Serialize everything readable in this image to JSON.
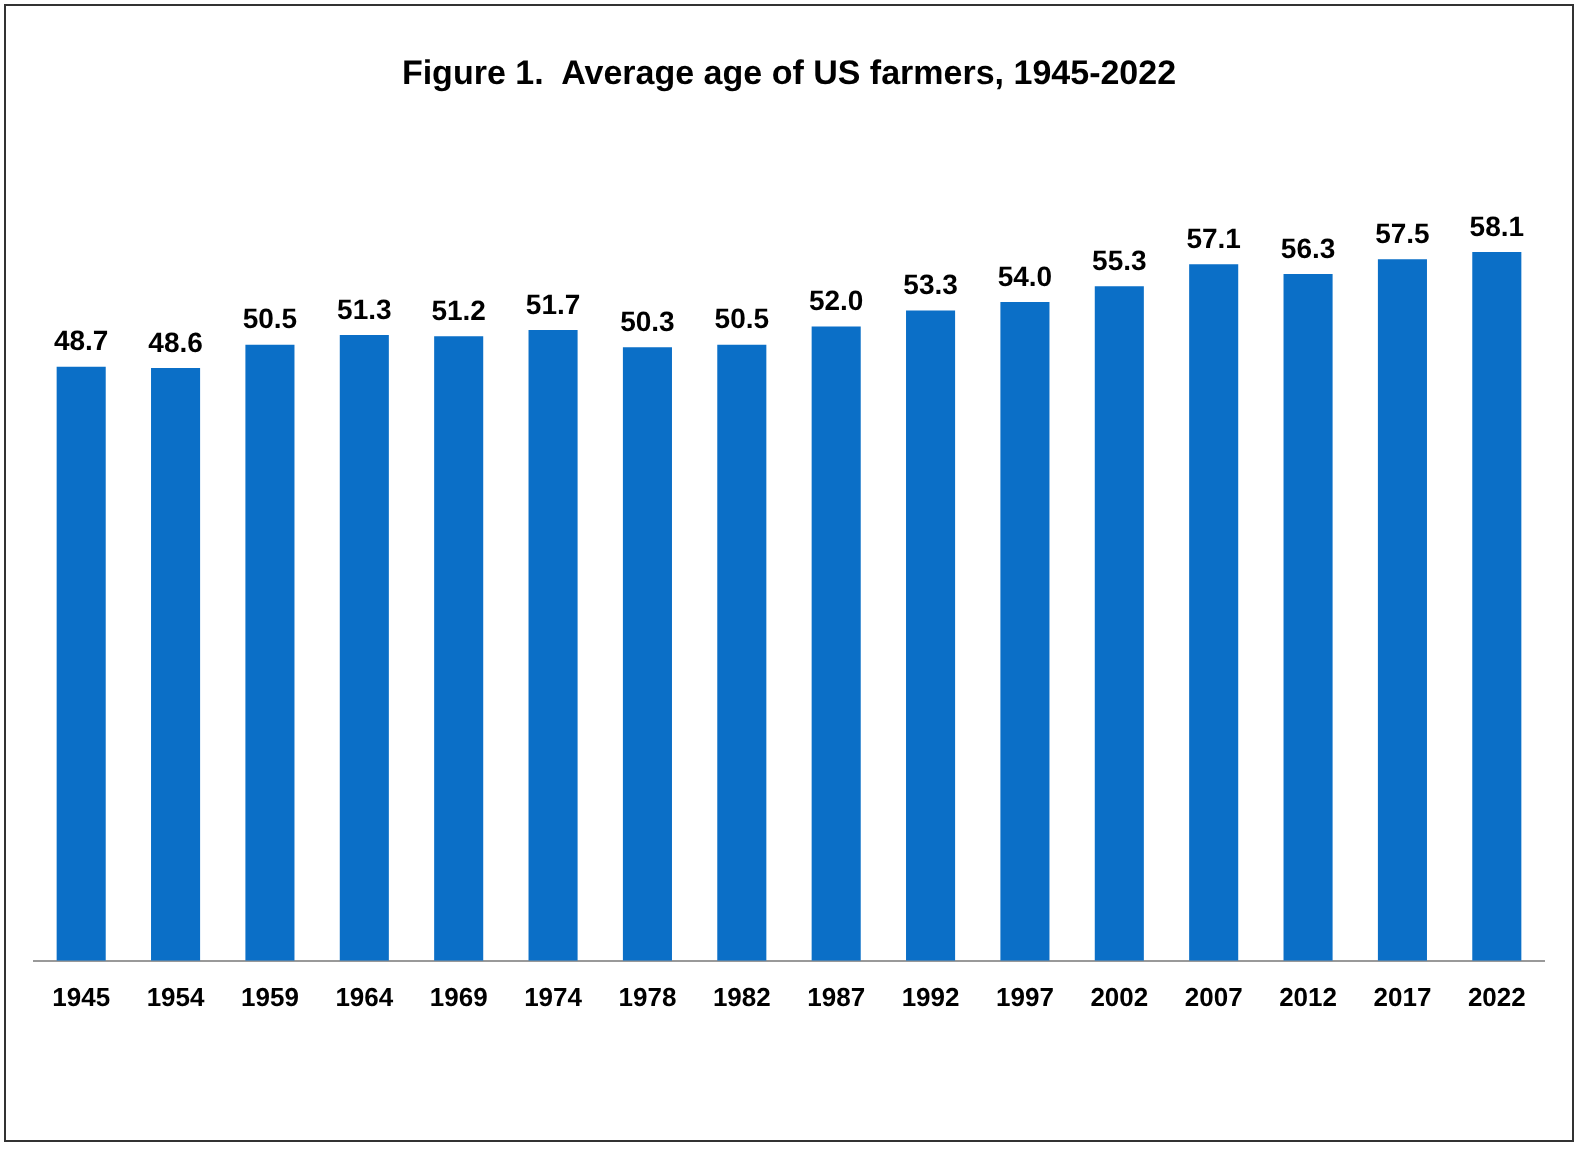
{
  "chart_data": {
    "type": "bar",
    "title": "Figure 1.  Average age of US farmers, 1945-2022",
    "categories": [
      "1945",
      "1954",
      "1959",
      "1964",
      "1969",
      "1974",
      "1978",
      "1982",
      "1987",
      "1992",
      "1997",
      "2002",
      "2007",
      "2012",
      "2017",
      "2022"
    ],
    "values": [
      48.7,
      48.6,
      50.5,
      51.3,
      51.2,
      51.7,
      50.3,
      50.5,
      52.0,
      53.3,
      54.0,
      55.3,
      57.1,
      56.3,
      57.5,
      58.1
    ],
    "value_labels": [
      "48.7",
      "48.6",
      "50.5",
      "51.3",
      "51.2",
      "51.7",
      "50.3",
      "50.5",
      "52.0",
      "53.3",
      "54.0",
      "55.3",
      "57.1",
      "56.3",
      "57.5",
      "58.1"
    ],
    "color": "#0b6fc7",
    "tick_labels": "x",
    "grid": false,
    "legend": false
  }
}
